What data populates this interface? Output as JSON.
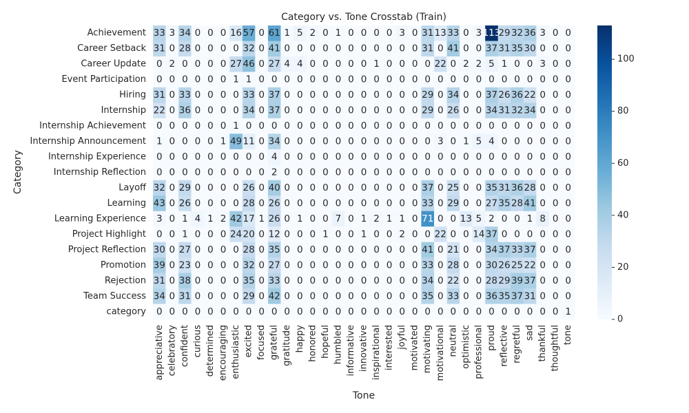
{
  "chart_data": {
    "type": "heatmap",
    "title": "Category vs. Tone Crosstab (Train)",
    "xlabel": "Tone",
    "ylabel": "Category",
    "colormap": "Blues",
    "vmin": 0,
    "vmax": 113,
    "colorbar_ticks": [
      0,
      20,
      40,
      60,
      80,
      100
    ],
    "x_categories": [
      "appreciative",
      "celebratory",
      "confident",
      "curious",
      "determined",
      "encouraging",
      "enthusiastic",
      "excited",
      "focused",
      "grateful",
      "gratitude",
      "happy",
      "honored",
      "hopeful",
      "humbled",
      "informative",
      "innovative",
      "inspirational",
      "interested",
      "joyful",
      "motivated",
      "motivating",
      "motivational",
      "neutral",
      "optimistic",
      "professional",
      "proud",
      "reflective",
      "regretful",
      "sad",
      "thankful",
      "thoughtful",
      "tone"
    ],
    "y_categories": [
      "Achievement",
      "Career Setback",
      "Career Update",
      "Event Participation",
      "Hiring",
      "Internship",
      "Internship Achievement",
      "Internship Announcement",
      "Internship Experience",
      "Internship Reflection",
      "Layoff",
      "Learning",
      "Learning Experience",
      "Project Highlight",
      "Project Reflection",
      "Promotion",
      "Rejection",
      "Team Success",
      "category"
    ],
    "values": [
      [
        33,
        3,
        34,
        0,
        0,
        0,
        16,
        57,
        0,
        61,
        1,
        5,
        2,
        0,
        1,
        0,
        0,
        0,
        0,
        3,
        0,
        31,
        13,
        33,
        0,
        3,
        113,
        29,
        32,
        36,
        3,
        0,
        0
      ],
      [
        31,
        0,
        28,
        0,
        0,
        0,
        0,
        32,
        0,
        41,
        0,
        0,
        0,
        0,
        0,
        0,
        0,
        0,
        0,
        0,
        0,
        31,
        0,
        41,
        0,
        0,
        37,
        31,
        35,
        30,
        0,
        0,
        0
      ],
      [
        0,
        2,
        0,
        0,
        0,
        0,
        27,
        46,
        0,
        27,
        4,
        4,
        0,
        0,
        0,
        0,
        0,
        1,
        0,
        0,
        0,
        0,
        22,
        0,
        2,
        2,
        5,
        1,
        0,
        0,
        3,
        0,
        0
      ],
      [
        0,
        0,
        0,
        0,
        0,
        0,
        1,
        1,
        0,
        0,
        0,
        0,
        0,
        0,
        0,
        0,
        0,
        0,
        0,
        0,
        0,
        0,
        0,
        0,
        0,
        0,
        0,
        0,
        0,
        0,
        0,
        0,
        0
      ],
      [
        31,
        0,
        33,
        0,
        0,
        0,
        0,
        33,
        0,
        37,
        0,
        0,
        0,
        0,
        0,
        0,
        0,
        0,
        0,
        0,
        0,
        29,
        0,
        34,
        0,
        0,
        37,
        26,
        36,
        22,
        0,
        0,
        0
      ],
      [
        22,
        0,
        36,
        0,
        0,
        0,
        0,
        34,
        0,
        37,
        0,
        0,
        0,
        0,
        0,
        0,
        0,
        0,
        0,
        0,
        0,
        29,
        0,
        26,
        0,
        0,
        34,
        31,
        32,
        34,
        0,
        0,
        0
      ],
      [
        0,
        0,
        0,
        0,
        0,
        0,
        1,
        0,
        0,
        0,
        0,
        0,
        0,
        0,
        0,
        0,
        0,
        0,
        0,
        0,
        0,
        0,
        0,
        0,
        0,
        0,
        0,
        0,
        0,
        0,
        0,
        0,
        0
      ],
      [
        1,
        0,
        0,
        0,
        0,
        1,
        49,
        11,
        0,
        34,
        0,
        0,
        0,
        0,
        0,
        0,
        0,
        0,
        0,
        0,
        0,
        0,
        3,
        0,
        1,
        5,
        4,
        0,
        0,
        0,
        0,
        0,
        0
      ],
      [
        0,
        0,
        0,
        0,
        0,
        0,
        0,
        0,
        0,
        4,
        0,
        0,
        0,
        0,
        0,
        0,
        0,
        0,
        0,
        0,
        0,
        0,
        0,
        0,
        0,
        0,
        0,
        0,
        0,
        0,
        0,
        0,
        0
      ],
      [
        0,
        0,
        0,
        0,
        0,
        0,
        0,
        0,
        0,
        2,
        0,
        0,
        0,
        0,
        0,
        0,
        0,
        0,
        0,
        0,
        0,
        0,
        0,
        0,
        0,
        0,
        0,
        0,
        0,
        0,
        0,
        0,
        0
      ],
      [
        32,
        0,
        29,
        0,
        0,
        0,
        0,
        26,
        0,
        40,
        0,
        0,
        0,
        0,
        0,
        0,
        0,
        0,
        0,
        0,
        0,
        37,
        0,
        25,
        0,
        0,
        35,
        31,
        36,
        28,
        0,
        0,
        0
      ],
      [
        43,
        0,
        26,
        0,
        0,
        0,
        0,
        28,
        0,
        26,
        0,
        0,
        0,
        0,
        0,
        0,
        0,
        0,
        0,
        0,
        0,
        33,
        0,
        29,
        0,
        0,
        27,
        35,
        28,
        41,
        0,
        0,
        0
      ],
      [
        3,
        0,
        1,
        4,
        1,
        2,
        42,
        17,
        1,
        26,
        0,
        1,
        0,
        0,
        7,
        0,
        1,
        2,
        1,
        1,
        0,
        71,
        0,
        0,
        13,
        5,
        2,
        0,
        0,
        1,
        8,
        0,
        0
      ],
      [
        0,
        0,
        1,
        0,
        0,
        0,
        24,
        20,
        0,
        12,
        0,
        0,
        0,
        1,
        0,
        0,
        1,
        0,
        0,
        2,
        0,
        0,
        22,
        0,
        0,
        14,
        37,
        0,
        0,
        0,
        0,
        0,
        0
      ],
      [
        30,
        0,
        27,
        0,
        0,
        0,
        0,
        28,
        0,
        35,
        0,
        0,
        0,
        0,
        0,
        0,
        0,
        0,
        0,
        0,
        0,
        41,
        0,
        21,
        0,
        0,
        34,
        37,
        33,
        37,
        0,
        0,
        0
      ],
      [
        39,
        0,
        23,
        0,
        0,
        0,
        0,
        32,
        0,
        27,
        0,
        0,
        0,
        0,
        0,
        0,
        0,
        0,
        0,
        0,
        0,
        33,
        0,
        28,
        0,
        0,
        30,
        26,
        25,
        22,
        0,
        0,
        0
      ],
      [
        31,
        0,
        38,
        0,
        0,
        0,
        0,
        35,
        0,
        33,
        0,
        0,
        0,
        0,
        0,
        0,
        0,
        0,
        0,
        0,
        0,
        34,
        0,
        22,
        0,
        0,
        28,
        29,
        39,
        37,
        0,
        0,
        0
      ],
      [
        34,
        0,
        31,
        0,
        0,
        0,
        0,
        29,
        0,
        42,
        0,
        0,
        0,
        0,
        0,
        0,
        0,
        0,
        0,
        0,
        0,
        35,
        0,
        33,
        0,
        0,
        36,
        35,
        37,
        31,
        0,
        0,
        0
      ],
      [
        0,
        0,
        0,
        0,
        0,
        0,
        0,
        0,
        0,
        0,
        0,
        0,
        0,
        0,
        0,
        0,
        0,
        0,
        0,
        0,
        0,
        0,
        0,
        0,
        0,
        0,
        0,
        0,
        0,
        0,
        0,
        0,
        1
      ]
    ]
  }
}
